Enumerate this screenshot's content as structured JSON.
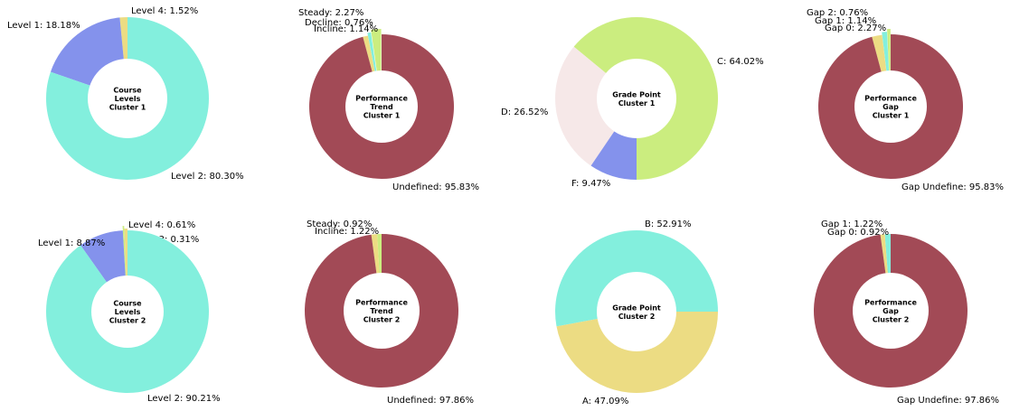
{
  "chart_data": [
    {
      "type": "pie",
      "center_text": [
        "Course",
        "Levels",
        "Cluster 1"
      ],
      "slices": [
        {
          "label": "Level 4: 1.52%",
          "value": 1.52,
          "color": "#ecdc83"
        },
        {
          "label": "Level 1: 18.18%",
          "value": 18.18,
          "color": "#8492ec"
        },
        {
          "label": "Level 2: 80.30%",
          "value": 80.3,
          "color": "#83efdd"
        }
      ]
    },
    {
      "type": "pie",
      "center_text": [
        "Performance",
        "Trend",
        "Cluster 1"
      ],
      "slices": [
        {
          "label": "Steady: 2.27%",
          "value": 2.27,
          "color": "#cbed7f"
        },
        {
          "label": "Decline: 0.76%",
          "value": 0.76,
          "color": "#83efdd"
        },
        {
          "label": "Incline: 1.14%",
          "value": 1.14,
          "color": "#ecdc83"
        },
        {
          "label": "Undefined: 95.83%",
          "value": 95.83,
          "color": "#a24a56"
        }
      ]
    },
    {
      "type": "pie",
      "center_text": [
        "Grade Point",
        "Cluster 1"
      ],
      "slices": [
        {
          "label": "C: 64.02%",
          "value": 64.02,
          "color": "#cbed7f"
        },
        {
          "label": "D: 26.52%",
          "value": 26.52,
          "color": "#f6e8e8"
        },
        {
          "label": "F: 9.47%",
          "value": 9.47,
          "color": "#8492ec"
        }
      ]
    },
    {
      "type": "pie",
      "center_text": [
        "Performance",
        "Gap",
        "Cluster 1"
      ],
      "slices": [
        {
          "label": "Gap 2: 0.76%",
          "value": 0.76,
          "color": "#cbed7f"
        },
        {
          "label": "Gap 1: 1.14%",
          "value": 1.14,
          "color": "#83efdd"
        },
        {
          "label": "Gap 0: 2.27%",
          "value": 2.27,
          "color": "#ecdc83"
        },
        {
          "label": "Gap Undefine: 95.83%",
          "value": 95.83,
          "color": "#a24a56"
        }
      ]
    },
    {
      "type": "pie",
      "center_text": [
        "Course",
        "Levels",
        "Cluster 2"
      ],
      "slices": [
        {
          "label": "Level 4: 0.61%",
          "value": 0.61,
          "color": "#ecdc83"
        },
        {
          "label": "Level 3: 0.31%",
          "value": 0.31,
          "color": "#cbed7f"
        },
        {
          "label": "Level 1: 8.87%",
          "value": 8.87,
          "color": "#8492ec"
        },
        {
          "label": "Level 2: 90.21%",
          "value": 90.21,
          "color": "#83efdd"
        }
      ]
    },
    {
      "type": "pie",
      "center_text": [
        "Performance",
        "Trend",
        "Cluster 2"
      ],
      "slices": [
        {
          "label": "Steady: 0.92%",
          "value": 0.92,
          "color": "#cbed7f"
        },
        {
          "label": "Incline: 1.22%",
          "value": 1.22,
          "color": "#ecdc83"
        },
        {
          "label": "Undefined: 97.86%",
          "value": 97.86,
          "color": "#a24a56"
        }
      ]
    },
    {
      "type": "pie",
      "center_text": [
        "Grade Point",
        "Cluster 2"
      ],
      "slices": [
        {
          "label": "B: 52.91%",
          "value": 52.91,
          "color": "#83efdd"
        },
        {
          "label": "A: 47.09%",
          "value": 47.09,
          "color": "#ecdc83"
        }
      ]
    },
    {
      "type": "pie",
      "center_text": [
        "Performance",
        "Gap",
        "Cluster 2"
      ],
      "slices": [
        {
          "label": "Gap 1: 1.22%",
          "value": 1.22,
          "color": "#83efdd"
        },
        {
          "label": "Gap 0: 0.92%",
          "value": 0.92,
          "color": "#ecdc83"
        },
        {
          "label": "Gap Undefine: 97.86%",
          "value": 97.86,
          "color": "#a24a56"
        }
      ]
    }
  ]
}
